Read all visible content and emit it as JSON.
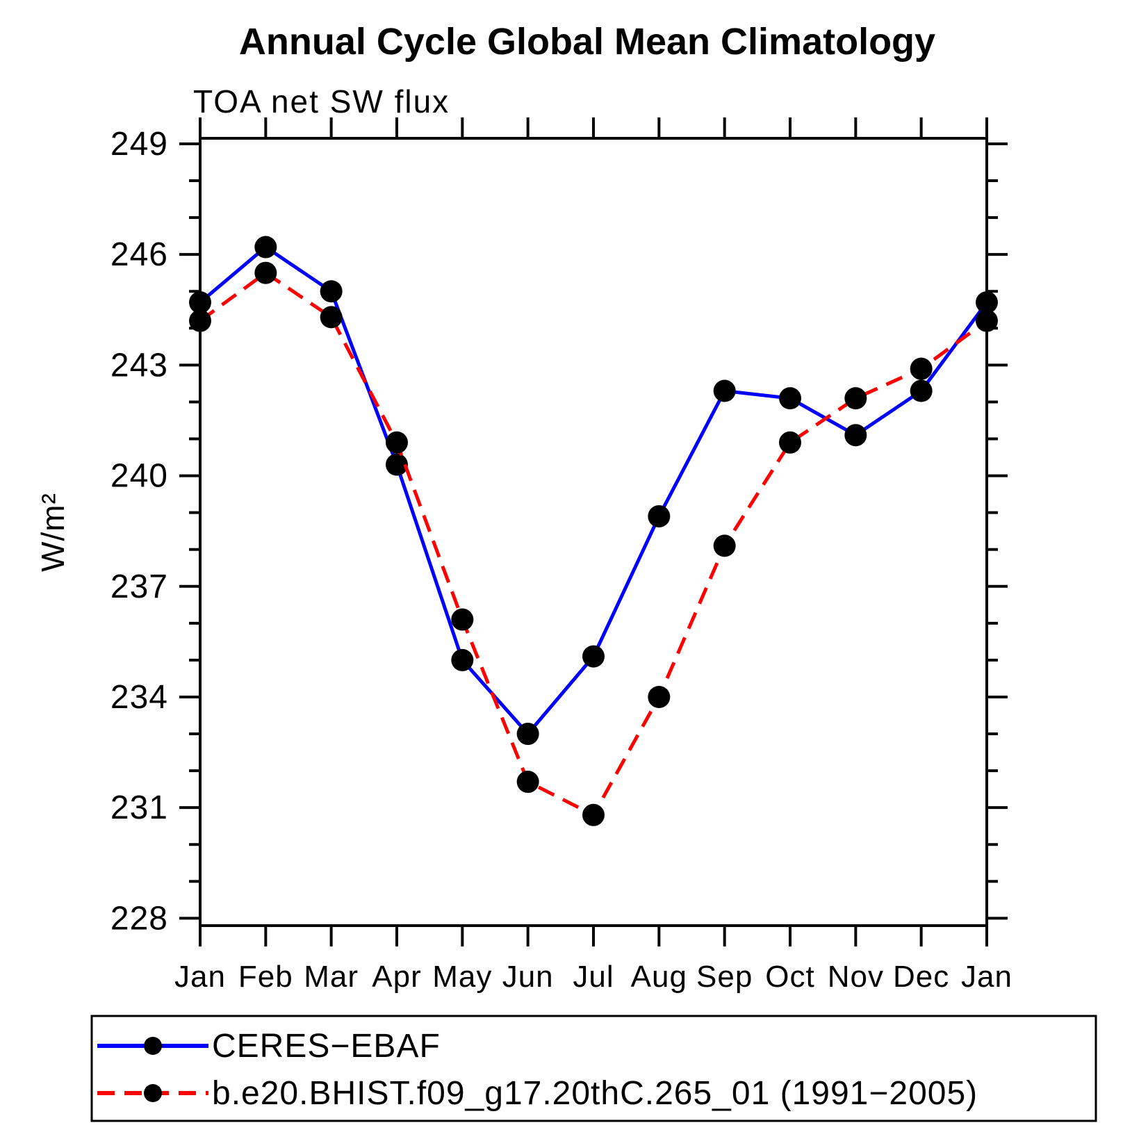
{
  "title": "Annual Cycle Global Mean Climatology",
  "subtitle": "TOA net SW flux",
  "colors": {
    "axis": "#000000",
    "obs_line": "#0000ff",
    "model_line": "#ff0000",
    "marker": "#000000",
    "background": "#ffffff"
  },
  "legend": {
    "items": [
      {
        "label": "CERES−EBAF"
      },
      {
        "label": "b.e20.BHIST.f09_g17.20thC.265_01 (1991−2005)"
      }
    ]
  },
  "chart_data": {
    "type": "line",
    "title": "Annual Cycle Global Mean Climatology",
    "subtitle": "TOA net SW flux",
    "xlabel": "",
    "ylabel": "W/m²",
    "categories": [
      "Jan",
      "Feb",
      "Mar",
      "Apr",
      "May",
      "Jun",
      "Jul",
      "Aug",
      "Sep",
      "Oct",
      "Nov",
      "Dec",
      "Jan"
    ],
    "ylim": [
      227.8,
      249.15
    ],
    "yticks_major": [
      228,
      231,
      234,
      237,
      240,
      243,
      246,
      249
    ],
    "ytick_minor_step": 1,
    "grid": false,
    "legend_position": "bottom",
    "series": [
      {
        "name": "CERES−EBAF",
        "color": "#0000ff",
        "style": "solid",
        "marker": "circle",
        "marker_color": "#000000",
        "values": [
          244.7,
          246.2,
          245.0,
          240.3,
          235.0,
          233.0,
          235.1,
          238.9,
          242.3,
          242.1,
          241.1,
          242.3,
          244.7
        ]
      },
      {
        "name": "b.e20.BHIST.f09_g17.20thC.265_01 (1991−2005)",
        "color": "#ff0000",
        "style": "dashed",
        "marker": "circle",
        "marker_color": "#000000",
        "values": [
          244.2,
          245.5,
          244.3,
          240.9,
          236.1,
          231.7,
          230.8,
          234.0,
          238.1,
          240.9,
          242.1,
          242.9,
          244.2
        ]
      }
    ]
  }
}
